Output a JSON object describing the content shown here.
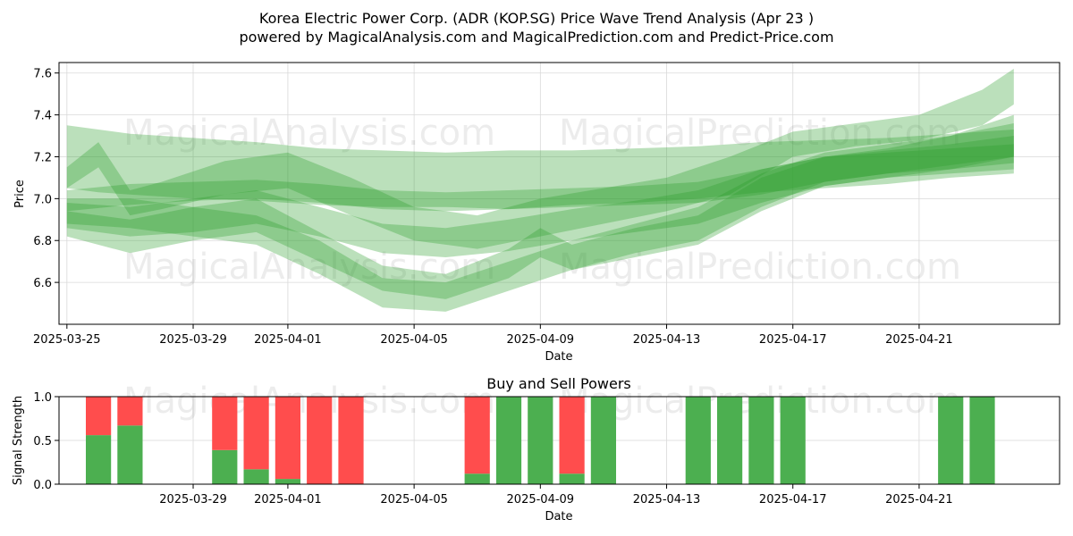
{
  "figure": {
    "title_line1": "Korea Electric Power Corp. (ADR (KOP.SG) Price Wave Trend Analysis (Apr 23 )",
    "title_line2": "powered by MagicalAnalysis.com and MagicalPrediction.com and Predict-Price.com",
    "watermarks": [
      "MagicalAnalysis.com",
      "MagicalPrediction.com"
    ],
    "colors": {
      "band": "#2ca02c",
      "buy": "#4caf50",
      "sell": "#ff4d4d",
      "grid": "#d9d9d9"
    }
  },
  "chart_data": [
    {
      "type": "area",
      "title": "",
      "xlabel": "Date",
      "ylabel": "Price",
      "x_start": "2025-03-25",
      "x_ticks": [
        "2025-03-25",
        "2025-03-29",
        "2025-04-01",
        "2025-04-05",
        "2025-04-09",
        "2025-04-13",
        "2025-04-17",
        "2025-04-21"
      ],
      "y_ticks": [
        "6.6",
        "6.8",
        "7.0",
        "7.2",
        "7.4",
        "7.6"
      ],
      "ylim": [
        6.4,
        7.65
      ],
      "xlim": [
        "2025-03-24",
        "2025-04-25"
      ],
      "grid": true,
      "series": [
        {
          "x": [
            "2025-03-25",
            "2025-03-26",
            "2025-03-27",
            "2025-03-28",
            "2025-03-29",
            "2025-03-31",
            "2025-04-02",
            "2025-04-04",
            "2025-04-06",
            "2025-04-08",
            "2025-04-10",
            "2025-04-12",
            "2025-04-14",
            "2025-04-16",
            "2025-04-18",
            "2025-04-20",
            "2025-04-22",
            "2025-04-24"
          ],
          "lower": [
            7.05,
            7.03,
            7.02,
            7.01,
            7.0,
            6.99,
            6.97,
            6.96,
            6.96,
            6.95,
            6.97,
            6.98,
            7.0,
            7.03,
            7.05,
            7.07,
            7.1,
            7.12
          ],
          "upper": [
            7.35,
            7.33,
            7.31,
            7.3,
            7.29,
            7.27,
            7.24,
            7.23,
            7.22,
            7.23,
            7.23,
            7.24,
            7.25,
            7.27,
            7.28,
            7.29,
            7.31,
            7.33
          ]
        },
        {
          "x": [
            "2025-03-25",
            "2025-03-27",
            "2025-03-29",
            "2025-03-31",
            "2025-04-02",
            "2025-04-04",
            "2025-04-06",
            "2025-04-08",
            "2025-04-10",
            "2025-04-12",
            "2025-04-14",
            "2025-04-16",
            "2025-04-18",
            "2025-04-20",
            "2025-04-22",
            "2025-04-24"
          ],
          "lower": [
            6.94,
            6.97,
            6.99,
            7.0,
            6.98,
            6.95,
            6.94,
            6.95,
            6.96,
            6.97,
            6.98,
            7.02,
            7.08,
            7.12,
            7.14,
            7.17
          ],
          "upper": [
            7.04,
            7.07,
            7.08,
            7.09,
            7.07,
            7.04,
            7.03,
            7.04,
            7.05,
            7.06,
            7.08,
            7.14,
            7.2,
            7.23,
            7.26,
            7.3
          ]
        },
        {
          "x": [
            "2025-03-25",
            "2025-03-27",
            "2025-03-29",
            "2025-03-31",
            "2025-04-02",
            "2025-04-04",
            "2025-04-06",
            "2025-04-08",
            "2025-04-10",
            "2025-04-12",
            "2025-04-14",
            "2025-04-16",
            "2025-04-18",
            "2025-04-20",
            "2025-04-22",
            "2025-04-24"
          ],
          "lower": [
            6.86,
            6.82,
            6.84,
            6.88,
            6.82,
            6.74,
            6.72,
            6.75,
            6.8,
            6.84,
            6.88,
            6.98,
            7.06,
            7.1,
            7.12,
            7.14
          ],
          "upper": [
            6.98,
            6.96,
            7.0,
            7.04,
            6.96,
            6.88,
            6.86,
            6.9,
            6.95,
            6.99,
            7.04,
            7.14,
            7.2,
            7.22,
            7.24,
            7.26
          ]
        },
        {
          "x": [
            "2025-03-25",
            "2025-03-26",
            "2025-03-27",
            "2025-03-28",
            "2025-03-30",
            "2025-04-01",
            "2025-04-03",
            "2025-04-05",
            "2025-04-07",
            "2025-04-09",
            "2025-04-11",
            "2025-04-13",
            "2025-04-15",
            "2025-04-17",
            "2025-04-19",
            "2025-04-21",
            "2025-04-23",
            "2025-04-24"
          ],
          "lower": [
            7.05,
            7.15,
            6.92,
            6.95,
            7.02,
            7.05,
            6.92,
            6.8,
            6.76,
            6.82,
            6.88,
            6.94,
            7.02,
            7.2,
            7.25,
            7.28,
            7.35,
            7.45
          ],
          "upper": [
            7.15,
            7.27,
            7.04,
            7.08,
            7.18,
            7.22,
            7.1,
            6.96,
            6.92,
            7.0,
            7.05,
            7.1,
            7.2,
            7.32,
            7.36,
            7.4,
            7.52,
            7.62
          ]
        },
        {
          "x": [
            "2025-03-25",
            "2025-03-27",
            "2025-03-29",
            "2025-03-31",
            "2025-04-02",
            "2025-04-04",
            "2025-04-06",
            "2025-04-08",
            "2025-04-09",
            "2025-04-10",
            "2025-04-12",
            "2025-04-14",
            "2025-04-16",
            "2025-04-18",
            "2025-04-20",
            "2025-04-22",
            "2025-04-24"
          ],
          "lower": [
            6.82,
            6.74,
            6.8,
            6.84,
            6.7,
            6.56,
            6.52,
            6.62,
            6.72,
            6.66,
            6.72,
            6.78,
            6.94,
            7.06,
            7.1,
            7.14,
            7.2
          ],
          "upper": [
            6.94,
            6.9,
            6.96,
            7.0,
            6.84,
            6.68,
            6.64,
            6.76,
            6.86,
            6.78,
            6.86,
            6.92,
            7.1,
            7.2,
            7.24,
            7.3,
            7.4
          ]
        },
        {
          "x": [
            "2025-03-25",
            "2025-03-27",
            "2025-03-29",
            "2025-03-31",
            "2025-04-02",
            "2025-04-04",
            "2025-04-06",
            "2025-04-08",
            "2025-04-10",
            "2025-04-12",
            "2025-04-14",
            "2025-04-16",
            "2025-04-18",
            "2025-04-20",
            "2025-04-22",
            "2025-04-24"
          ],
          "lower": [
            6.88,
            6.86,
            6.82,
            6.78,
            6.64,
            6.48,
            6.46,
            6.56,
            6.66,
            6.74,
            6.8,
            6.96,
            7.08,
            7.12,
            7.16,
            7.2
          ],
          "upper": [
            7.0,
            7.0,
            6.96,
            6.92,
            6.8,
            6.62,
            6.6,
            6.7,
            6.8,
            6.88,
            6.96,
            7.12,
            7.22,
            7.26,
            7.3,
            7.36
          ]
        }
      ]
    },
    {
      "type": "bar",
      "title": "Buy and Sell Powers",
      "xlabel": "Date",
      "ylabel": "Signal Strength",
      "x_ticks": [
        "2025-03-29",
        "2025-04-01",
        "2025-04-05",
        "2025-04-09",
        "2025-04-13",
        "2025-04-17",
        "2025-04-21"
      ],
      "y_ticks": [
        "0.0",
        "0.5",
        "1.0"
      ],
      "ylim": [
        0,
        1
      ],
      "xlim": [
        "2025-03-24",
        "2025-04-25"
      ],
      "grid": true,
      "dates": [
        "2025-03-26",
        "2025-03-27",
        "2025-03-30",
        "2025-03-31",
        "2025-04-01",
        "2025-04-02",
        "2025-04-03",
        "2025-04-07",
        "2025-04-08",
        "2025-04-09",
        "2025-04-10",
        "2025-04-11",
        "2025-04-14",
        "2025-04-15",
        "2025-04-16",
        "2025-04-17",
        "2025-04-22",
        "2025-04-23"
      ],
      "series": [
        {
          "name": "buy",
          "values": [
            0.56,
            0.67,
            0.39,
            0.17,
            0.06,
            0.0,
            0.0,
            0.12,
            1.0,
            1.0,
            0.12,
            1.0,
            1.0,
            1.0,
            1.0,
            1.0,
            1.0,
            1.0
          ]
        },
        {
          "name": "sell",
          "values": [
            0.44,
            0.33,
            0.61,
            0.83,
            0.94,
            1.0,
            1.0,
            0.88,
            0.0,
            0.0,
            0.88,
            0.0,
            0.0,
            0.0,
            0.0,
            0.0,
            0.0,
            0.0
          ]
        }
      ]
    }
  ]
}
